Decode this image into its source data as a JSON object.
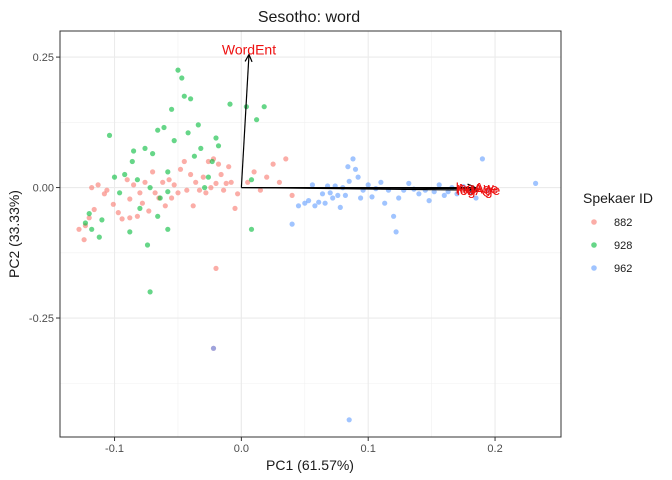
{
  "chart_data": {
    "type": "scatter",
    "title": "Sesotho: word",
    "xlabel": "PC1 (61.57%)",
    "ylabel": "PC2 (33.33%)",
    "xlim": [
      -0.143,
      0.252
    ],
    "ylim": [
      -0.478,
      0.3
    ],
    "x_ticks": [
      -0.1,
      0.0,
      0.1,
      0.2
    ],
    "x_tick_labels": [
      "-0.1",
      "0.0",
      "0.1",
      "0.2"
    ],
    "y_ticks": [
      -0.25,
      0.0,
      0.25
    ],
    "y_tick_labels": [
      "-0.25",
      "0.00",
      "0.25"
    ],
    "x_minor": [
      -0.05,
      0.05,
      0.15
    ],
    "y_minor": [
      -0.375,
      -0.125,
      0.125
    ],
    "grid": true,
    "legend": {
      "title": "Spekaer ID",
      "position": "right"
    },
    "series": [
      {
        "name": "882",
        "color": "#F8766D",
        "points": [
          [
            -0.128,
            -0.08
          ],
          [
            -0.123,
            -0.073
          ],
          [
            -0.12,
            -0.058
          ],
          [
            -0.118,
            -0.0
          ],
          [
            -0.116,
            -0.042
          ],
          [
            -0.124,
            -0.1
          ],
          [
            -0.113,
            0.005
          ],
          [
            -0.108,
            -0.012
          ],
          [
            -0.106,
            -0.005
          ],
          [
            -0.101,
            -0.032
          ],
          [
            -0.097,
            -0.048
          ],
          [
            -0.094,
            -0.06
          ],
          [
            -0.09,
            0.015
          ],
          [
            -0.088,
            -0.022
          ],
          [
            -0.088,
            -0.058
          ],
          [
            -0.085,
            0.005
          ],
          [
            -0.082,
            -0.055
          ],
          [
            -0.08,
            -0.01
          ],
          [
            -0.078,
            -0.03
          ],
          [
            -0.076,
            0.01
          ],
          [
            -0.073,
            -0.045
          ],
          [
            -0.07,
            0.03
          ],
          [
            -0.068,
            -0.01
          ],
          [
            -0.065,
            -0.02
          ],
          [
            -0.062,
            0.01
          ],
          [
            -0.06,
            -0.035
          ],
          [
            -0.057,
            0.015
          ],
          [
            -0.055,
            -0.02
          ],
          [
            -0.053,
            0.005
          ],
          [
            -0.05,
            -0.01
          ],
          [
            -0.048,
            0.035
          ],
          [
            -0.045,
            0.05
          ],
          [
            -0.043,
            -0.005
          ],
          [
            -0.04,
            0.025
          ],
          [
            -0.038,
            -0.035
          ],
          [
            -0.036,
            0.01
          ],
          [
            -0.033,
            -0.005
          ],
          [
            -0.03,
            0.02
          ],
          [
            -0.028,
            -0.01
          ],
          [
            -0.026,
            0.05
          ],
          [
            -0.024,
            0.0
          ],
          [
            -0.022,
            0.055
          ],
          [
            -0.02,
            0.008
          ],
          [
            -0.018,
            0.045
          ],
          [
            -0.016,
            0.025
          ],
          [
            -0.014,
            -0.005
          ],
          [
            -0.012,
            0.008
          ],
          [
            -0.01,
            0.04
          ],
          [
            -0.008,
            0.01
          ],
          [
            -0.005,
            -0.04
          ],
          [
            -0.003,
            -0.012
          ],
          [
            -0.02,
            -0.155
          ],
          [
            -0.022,
            -0.308
          ],
          [
            0.005,
            0.01
          ],
          [
            0.01,
            0.03
          ],
          [
            0.015,
            -0.005
          ],
          [
            0.02,
            0.02
          ],
          [
            0.025,
            0.045
          ],
          [
            0.03,
            0.01
          ],
          [
            0.035,
            0.055
          ],
          [
            0.04,
            -0.015
          ]
        ]
      },
      {
        "name": "928",
        "color": "#00BA38",
        "points": [
          [
            -0.123,
            -0.068
          ],
          [
            -0.12,
            -0.05
          ],
          [
            -0.118,
            -0.08
          ],
          [
            -0.112,
            -0.095
          ],
          [
            -0.11,
            -0.062
          ],
          [
            -0.104,
            0.1
          ],
          [
            -0.1,
            0.02
          ],
          [
            -0.096,
            -0.01
          ],
          [
            -0.092,
            0.025
          ],
          [
            -0.088,
            -0.085
          ],
          [
            -0.086,
            0.05
          ],
          [
            -0.082,
            0.015
          ],
          [
            -0.08,
            -0.04
          ],
          [
            -0.076,
            0.075
          ],
          [
            -0.074,
            -0.11
          ],
          [
            -0.072,
            -0.2
          ],
          [
            -0.07,
            0.065
          ],
          [
            -0.066,
            0.11
          ],
          [
            -0.064,
            -0.02
          ],
          [
            -0.061,
            0.115
          ],
          [
            -0.058,
            0.03
          ],
          [
            -0.055,
            0.15
          ],
          [
            -0.053,
            0.09
          ],
          [
            -0.05,
            0.225
          ],
          [
            -0.047,
            0.21
          ],
          [
            -0.045,
            0.175
          ],
          [
            -0.042,
            0.105
          ],
          [
            -0.04,
            0.17
          ],
          [
            -0.037,
            0.06
          ],
          [
            -0.034,
            0.12
          ],
          [
            -0.032,
            0.075
          ],
          [
            -0.029,
            0.0
          ],
          [
            -0.026,
            0.02
          ],
          [
            -0.023,
            0.05
          ],
          [
            -0.02,
            0.095
          ],
          [
            -0.018,
            0.08
          ],
          [
            -0.085,
            0.07
          ],
          [
            -0.066,
            -0.055
          ],
          [
            -0.058,
            -0.08
          ],
          [
            -0.058,
            -0.008
          ],
          [
            -0.072,
            0.0
          ],
          [
            -0.009,
            0.16
          ],
          [
            0.004,
            0.155
          ],
          [
            0.008,
            0.015
          ],
          [
            0.008,
            -0.08
          ],
          [
            0.012,
            0.13
          ],
          [
            0.018,
            0.155
          ]
        ]
      },
      {
        "name": "962",
        "color": "#619CFF",
        "points": [
          [
            0.04,
            -0.07
          ],
          [
            0.045,
            -0.035
          ],
          [
            0.05,
            -0.03
          ],
          [
            0.053,
            -0.025
          ],
          [
            0.056,
            0.005
          ],
          [
            0.058,
            -0.035
          ],
          [
            0.061,
            -0.028
          ],
          [
            0.064,
            -0.012
          ],
          [
            0.066,
            -0.03
          ],
          [
            0.068,
            0.003
          ],
          [
            0.07,
            -0.01
          ],
          [
            0.072,
            -0.02
          ],
          [
            0.074,
            0.003
          ],
          [
            0.076,
            -0.015
          ],
          [
            0.078,
            -0.038
          ],
          [
            0.08,
            0.0
          ],
          [
            0.082,
            -0.015
          ],
          [
            0.084,
            0.04
          ],
          [
            0.085,
            0.012
          ],
          [
            0.088,
            0.055
          ],
          [
            0.09,
            0.035
          ],
          [
            0.092,
            0.02
          ],
          [
            0.094,
            -0.02
          ],
          [
            0.096,
            -0.005
          ],
          [
            0.1,
            0.005
          ],
          [
            0.103,
            -0.018
          ],
          [
            0.106,
            -0.002
          ],
          [
            0.11,
            0.01
          ],
          [
            0.113,
            -0.03
          ],
          [
            0.116,
            -0.005
          ],
          [
            0.12,
            -0.055
          ],
          [
            0.122,
            -0.085
          ],
          [
            0.124,
            -0.02
          ],
          [
            0.128,
            -0.005
          ],
          [
            0.132,
            0.008
          ],
          [
            0.136,
            -0.003
          ],
          [
            0.14,
            -0.012
          ],
          [
            0.145,
            -0.005
          ],
          [
            0.148,
            -0.025
          ],
          [
            0.152,
            -0.008
          ],
          [
            0.156,
            0.005
          ],
          [
            0.16,
            -0.015
          ],
          [
            0.163,
            -0.008
          ],
          [
            0.166,
            0.0
          ],
          [
            0.17,
            -0.012
          ],
          [
            0.175,
            0.002
          ],
          [
            0.18,
            -0.008
          ],
          [
            0.185,
            -0.02
          ],
          [
            0.19,
            0.055
          ],
          [
            0.195,
            -0.005
          ],
          [
            0.232,
            0.008
          ],
          [
            0.085,
            -0.445
          ],
          [
            -0.022,
            -0.308
          ]
        ]
      }
    ],
    "arrows": [
      {
        "label": "WordEnt",
        "x": 0.006,
        "y": 0.255
      },
      {
        "label": "logAge",
        "x": 0.187,
        "y": -0.005
      },
      {
        "label": "AuAge",
        "x": 0.186,
        "y": -0.002
      },
      {
        "label": "logAw",
        "x": 0.184,
        "y": 0.0
      }
    ]
  }
}
